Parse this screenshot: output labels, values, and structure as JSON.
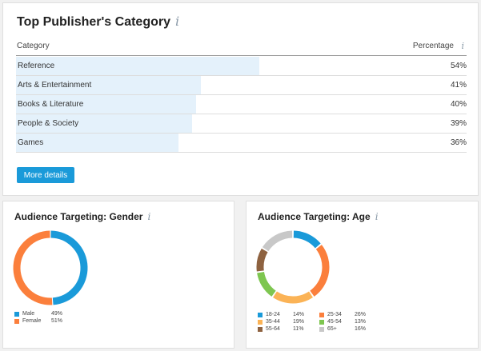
{
  "publishers": {
    "title": "Top Publisher's Category",
    "info_icon": "i",
    "col_category": "Category",
    "col_percentage": "Percentage",
    "rows": [
      {
        "name": "Reference",
        "pct": "54%",
        "value": 54
      },
      {
        "name": "Arts & Entertainment",
        "pct": "41%",
        "value": 41
      },
      {
        "name": "Books & Literature",
        "pct": "40%",
        "value": 40
      },
      {
        "name": "People & Society",
        "pct": "39%",
        "value": 39
      },
      {
        "name": "Games",
        "pct": "36%",
        "value": 36
      }
    ],
    "more_details": "More details",
    "bar_color": "#e4f1fb",
    "button_color": "#1a9ad9"
  },
  "gender": {
    "title": "Audience Targeting: Gender",
    "info_icon": "i",
    "segments": [
      {
        "label": "Male",
        "pct": "49%",
        "value": 49,
        "color": "#1a9ad9"
      },
      {
        "label": "Female",
        "pct": "51%",
        "value": 51,
        "color": "#fb7f3c"
      }
    ]
  },
  "age": {
    "title": "Audience Targeting: Age",
    "info_icon": "i",
    "segments": [
      {
        "label": "18-24",
        "pct": "14%",
        "value": 14,
        "color": "#1a9ad9"
      },
      {
        "label": "25-34",
        "pct": "26%",
        "value": 26,
        "color": "#fb7f3c"
      },
      {
        "label": "35-44",
        "pct": "19%",
        "value": 19,
        "color": "#fbb356"
      },
      {
        "label": "45-54",
        "pct": "13%",
        "value": 13,
        "color": "#7ec650"
      },
      {
        "label": "55-64",
        "pct": "11%",
        "value": 11,
        "color": "#8e6240"
      },
      {
        "label": "65+",
        "pct": "16%",
        "value": 16,
        "color": "#c8c8c8"
      }
    ]
  }
}
